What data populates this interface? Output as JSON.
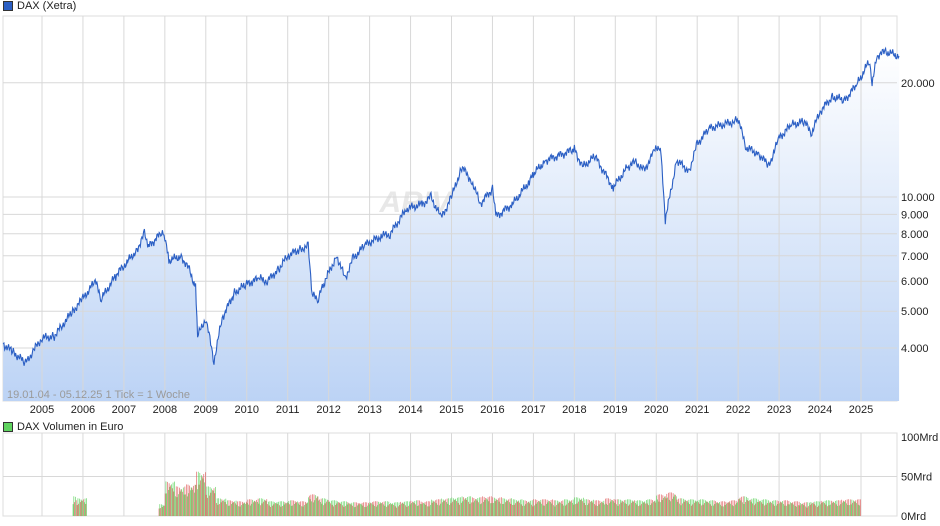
{
  "chart_data": [
    {
      "type": "area",
      "legend": "DAX (Xetra)",
      "range_label": "19.01.04 - 05.12.25   1 Tick = 1 Woche",
      "watermark": "ARIVA",
      "y_scale": "log",
      "ylim": [
        2900,
        30000
      ],
      "y_ticks": [
        4000,
        5000,
        6000,
        7000,
        8000,
        9000,
        10000,
        20000
      ],
      "y_tick_labels": [
        "4.000",
        "5.000",
        "6.000",
        "7.000",
        "8.000",
        "9.000",
        "10.000",
        "20.000"
      ],
      "x_tick_labels": [
        "2005",
        "2006",
        "2007",
        "2008",
        "2009",
        "2010",
        "2011",
        "2012",
        "2013",
        "2014",
        "2015",
        "2016",
        "2017",
        "2018",
        "2019",
        "2020",
        "2021",
        "2022",
        "2023",
        "2024",
        "2025"
      ],
      "grid": true,
      "line_color": "#2b5fc4",
      "points": [
        [
          2004.05,
          4100
        ],
        [
          2004.3,
          3900
        ],
        [
          2004.6,
          3650
        ],
        [
          2004.8,
          3950
        ],
        [
          2005.0,
          4250
        ],
        [
          2005.3,
          4300
        ],
        [
          2005.5,
          4600
        ],
        [
          2005.75,
          5000
        ],
        [
          2006.0,
          5400
        ],
        [
          2006.3,
          6000
        ],
        [
          2006.45,
          5400
        ],
        [
          2006.8,
          6200
        ],
        [
          2007.0,
          6600
        ],
        [
          2007.3,
          7200
        ],
        [
          2007.5,
          8000
        ],
        [
          2007.6,
          7400
        ],
        [
          2007.9,
          8000
        ],
        [
          2008.0,
          7900
        ],
        [
          2008.1,
          6800
        ],
        [
          2008.4,
          7000
        ],
        [
          2008.6,
          6400
        ],
        [
          2008.75,
          5800
        ],
        [
          2008.8,
          4300
        ],
        [
          2009.0,
          4800
        ],
        [
          2009.2,
          3700
        ],
        [
          2009.4,
          4800
        ],
        [
          2009.7,
          5600
        ],
        [
          2010.0,
          5900
        ],
        [
          2010.3,
          6100
        ],
        [
          2010.5,
          6000
        ],
        [
          2010.8,
          6500
        ],
        [
          2011.0,
          7000
        ],
        [
          2011.3,
          7300
        ],
        [
          2011.5,
          7400
        ],
        [
          2011.6,
          5500
        ],
        [
          2011.75,
          5400
        ],
        [
          2011.9,
          6000
        ],
        [
          2012.2,
          7000
        ],
        [
          2012.4,
          6100
        ],
        [
          2012.6,
          6900
        ],
        [
          2012.9,
          7500
        ],
        [
          2013.3,
          7900
        ],
        [
          2013.5,
          8000
        ],
        [
          2013.9,
          9300
        ],
        [
          2014.3,
          9600
        ],
        [
          2014.5,
          10000
        ],
        [
          2014.75,
          8800
        ],
        [
          2015.0,
          10000
        ],
        [
          2015.25,
          12000
        ],
        [
          2015.5,
          11000
        ],
        [
          2015.7,
          9600
        ],
        [
          2016.0,
          10500
        ],
        [
          2016.1,
          8900
        ],
        [
          2016.5,
          9600
        ],
        [
          2016.9,
          11000
        ],
        [
          2017.0,
          11500
        ],
        [
          2017.3,
          12500
        ],
        [
          2017.9,
          13200
        ],
        [
          2018.0,
          13400
        ],
        [
          2018.2,
          12000
        ],
        [
          2018.5,
          12800
        ],
        [
          2018.95,
          10600
        ],
        [
          2019.3,
          12000
        ],
        [
          2019.5,
          12400
        ],
        [
          2019.7,
          11700
        ],
        [
          2019.95,
          13200
        ],
        [
          2020.1,
          13700
        ],
        [
          2020.22,
          8700
        ],
        [
          2020.5,
          12500
        ],
        [
          2020.8,
          11700
        ],
        [
          2021.0,
          13800
        ],
        [
          2021.3,
          15200
        ],
        [
          2021.9,
          15800
        ],
        [
          2022.0,
          16000
        ],
        [
          2022.2,
          13500
        ],
        [
          2022.5,
          13000
        ],
        [
          2022.75,
          12100
        ],
        [
          2023.0,
          14300
        ],
        [
          2023.3,
          15500
        ],
        [
          2023.6,
          15800
        ],
        [
          2023.8,
          14800
        ],
        [
          2024.0,
          16800
        ],
        [
          2024.3,
          18400
        ],
        [
          2024.6,
          18000
        ],
        [
          2024.9,
          19800
        ],
        [
          2025.2,
          22800
        ],
        [
          2025.27,
          20000
        ],
        [
          2025.4,
          23600
        ],
        [
          2025.6,
          24200
        ],
        [
          2025.93,
          23500
        ]
      ]
    },
    {
      "type": "bar",
      "legend": "DAX Volumen in Euro",
      "unit": "Mrd",
      "ylim": [
        0,
        100
      ],
      "y_ticks": [
        0,
        50,
        100
      ],
      "y_tick_labels": [
        "0Mrd",
        "50Mrd",
        "100Mrd"
      ],
      "up_color": "#5fd35f",
      "down_color": "#e06060",
      "quarterly_volume": [
        [
          2005.75,
          20
        ],
        [
          2005.85,
          18
        ],
        [
          2007.85,
          12
        ],
        [
          2008.0,
          35
        ],
        [
          2008.25,
          30
        ],
        [
          2008.5,
          32
        ],
        [
          2008.75,
          45
        ],
        [
          2009.0,
          30
        ],
        [
          2009.25,
          18
        ],
        [
          2009.5,
          16
        ],
        [
          2009.75,
          15
        ],
        [
          2010.0,
          17
        ],
        [
          2010.25,
          18
        ],
        [
          2010.5,
          15
        ],
        [
          2010.75,
          15
        ],
        [
          2011.0,
          16
        ],
        [
          2011.25,
          15
        ],
        [
          2011.5,
          22
        ],
        [
          2011.75,
          18
        ],
        [
          2012.0,
          16
        ],
        [
          2012.25,
          15
        ],
        [
          2012.5,
          14
        ],
        [
          2012.75,
          14
        ],
        [
          2013.0,
          15
        ],
        [
          2013.25,
          15
        ],
        [
          2013.5,
          14
        ],
        [
          2013.75,
          15
        ],
        [
          2014.0,
          16
        ],
        [
          2014.25,
          15
        ],
        [
          2014.5,
          17
        ],
        [
          2014.75,
          18
        ],
        [
          2015.0,
          19
        ],
        [
          2015.25,
          20
        ],
        [
          2015.5,
          19
        ],
        [
          2015.75,
          20
        ],
        [
          2016.0,
          19
        ],
        [
          2016.25,
          18
        ],
        [
          2016.5,
          17
        ],
        [
          2016.75,
          16
        ],
        [
          2017.0,
          17
        ],
        [
          2017.25,
          17
        ],
        [
          2017.5,
          16
        ],
        [
          2017.75,
          17
        ],
        [
          2018.0,
          19
        ],
        [
          2018.25,
          17
        ],
        [
          2018.5,
          16
        ],
        [
          2018.75,
          18
        ],
        [
          2019.0,
          17
        ],
        [
          2019.25,
          17
        ],
        [
          2019.5,
          16
        ],
        [
          2019.75,
          17
        ],
        [
          2020.0,
          22
        ],
        [
          2020.25,
          24
        ],
        [
          2020.5,
          18
        ],
        [
          2020.75,
          17
        ],
        [
          2021.0,
          17
        ],
        [
          2021.25,
          16
        ],
        [
          2021.5,
          15
        ],
        [
          2021.75,
          16
        ],
        [
          2022.0,
          20
        ],
        [
          2022.25,
          18
        ],
        [
          2022.5,
          17
        ],
        [
          2022.75,
          16
        ],
        [
          2023.0,
          16
        ],
        [
          2023.25,
          15
        ],
        [
          2023.5,
          14
        ],
        [
          2023.75,
          15
        ],
        [
          2024.0,
          16
        ],
        [
          2024.25,
          16
        ],
        [
          2024.5,
          17
        ],
        [
          2024.75,
          17
        ]
      ]
    }
  ]
}
